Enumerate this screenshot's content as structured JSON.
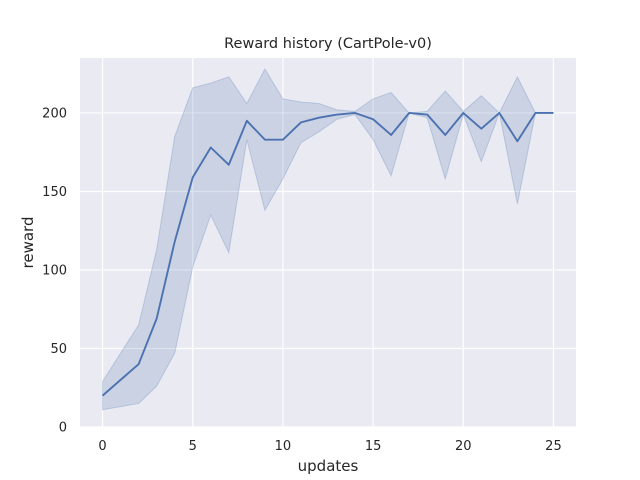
{
  "chart_data": {
    "type": "line",
    "title": "Reward history (CartPole-v0)",
    "xlabel": "updates",
    "ylabel": "reward",
    "xlim": [
      -1.25,
      26.25
    ],
    "ylim": [
      0,
      235
    ],
    "xticks": [
      0,
      5,
      10,
      15,
      20,
      25
    ],
    "yticks": [
      0,
      50,
      100,
      150,
      200
    ],
    "grid": true,
    "colors": {
      "background": "#EAEAF2",
      "grid": "#FFFFFF",
      "line": "#4C72B0",
      "band": "#4C72B0"
    },
    "series": [
      {
        "x": [
          0,
          1,
          2,
          3,
          4,
          5,
          6,
          7,
          8,
          9,
          10,
          11,
          12,
          13,
          14,
          15,
          16,
          17,
          18,
          19,
          20,
          21,
          22,
          23,
          24,
          25
        ],
        "mean": [
          20,
          30,
          40,
          69,
          118,
          159,
          178,
          167,
          195,
          183,
          183,
          194,
          197,
          199,
          200,
          196,
          186,
          200,
          199,
          186,
          200,
          190,
          200,
          182,
          200,
          200
        ],
        "upper": [
          29,
          47,
          65,
          113,
          185,
          216,
          219,
          223,
          206,
          228,
          209,
          207,
          206,
          202,
          201,
          209,
          213,
          200,
          201,
          214,
          201,
          211,
          200,
          223,
          200,
          200
        ],
        "lower": [
          11,
          13,
          15,
          26,
          47,
          102,
          135,
          111,
          183,
          138,
          158,
          181,
          188,
          196,
          199,
          183,
          160,
          200,
          197,
          158,
          199,
          169,
          200,
          142,
          200,
          200
        ]
      }
    ]
  }
}
